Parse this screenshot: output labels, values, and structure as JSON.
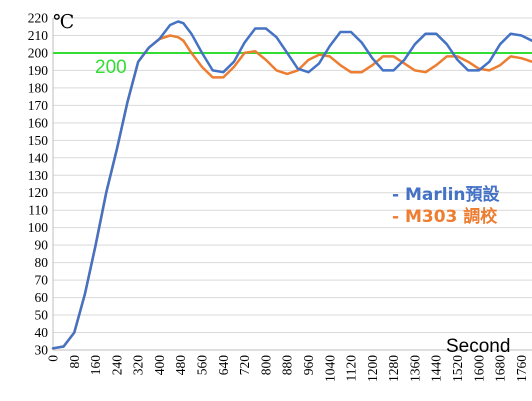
{
  "chart_data": {
    "type": "line",
    "unit_label": "℃",
    "xlabel": "Second",
    "ylabel": "",
    "ylim": [
      30,
      220
    ],
    "xlim": [
      0,
      1800
    ],
    "y_ticks": [
      220,
      210,
      200,
      190,
      180,
      170,
      160,
      150,
      140,
      130,
      120,
      110,
      100,
      90,
      80,
      70,
      60,
      50,
      40,
      30
    ],
    "x_ticks": [
      0,
      80,
      160,
      240,
      320,
      400,
      480,
      560,
      640,
      720,
      800,
      880,
      960,
      1040,
      1120,
      1200,
      1280,
      1360,
      1440,
      1520,
      1600,
      1680,
      1760
    ],
    "grid": true,
    "reference_line": {
      "value": 200,
      "label": "200",
      "color": "#33dd33"
    },
    "legend_position": "right",
    "series": [
      {
        "name": "Marlin預設",
        "color": "#4472c4",
        "x": [
          0,
          40,
          80,
          120,
          160,
          200,
          240,
          280,
          320,
          360,
          400,
          440,
          470,
          490,
          520,
          560,
          600,
          640,
          680,
          720,
          760,
          800,
          840,
          880,
          920,
          960,
          1000,
          1040,
          1080,
          1120,
          1160,
          1200,
          1240,
          1280,
          1320,
          1360,
          1400,
          1440,
          1480,
          1520,
          1560,
          1600,
          1640,
          1680,
          1720,
          1760,
          1800
        ],
        "y": [
          31,
          32,
          40,
          62,
          90,
          120,
          145,
          172,
          195,
          203,
          208,
          216,
          218,
          217,
          211,
          200,
          190,
          189,
          195,
          206,
          214,
          214,
          209,
          200,
          191,
          189,
          194,
          204,
          212,
          212,
          206,
          197,
          190,
          190,
          196,
          205,
          211,
          211,
          205,
          196,
          190,
          190,
          195,
          205,
          211,
          210,
          207
        ]
      },
      {
        "name": "M303 調校",
        "color": "#ed7d31",
        "x": [
          0,
          40,
          80,
          120,
          160,
          200,
          240,
          280,
          320,
          360,
          400,
          440,
          470,
          490,
          520,
          560,
          600,
          640,
          680,
          720,
          760,
          800,
          840,
          880,
          920,
          960,
          1000,
          1040,
          1080,
          1120,
          1160,
          1200,
          1240,
          1280,
          1320,
          1360,
          1400,
          1440,
          1480,
          1520,
          1560,
          1600,
          1640,
          1680,
          1720,
          1760,
          1800
        ],
        "y": [
          31,
          32,
          40,
          62,
          90,
          120,
          145,
          172,
          195,
          203,
          208,
          210,
          209,
          207,
          200,
          192,
          186,
          186,
          192,
          200,
          201,
          196,
          190,
          188,
          190,
          196,
          199,
          198,
          193,
          189,
          189,
          193,
          198,
          198,
          194,
          190,
          189,
          193,
          198,
          198,
          195,
          191,
          190,
          193,
          198,
          197,
          195
        ]
      }
    ]
  }
}
